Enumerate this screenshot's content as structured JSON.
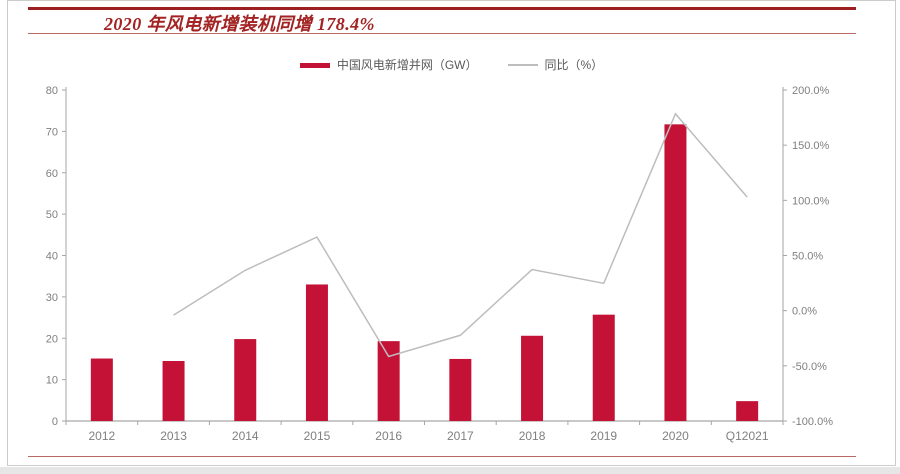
{
  "title": "2020 年风电新增装机同增 178.4%",
  "legend": {
    "bar_label": "中国风电新增并网（GW）",
    "line_label": "同比（%）"
  },
  "colors": {
    "bar": "#c41237",
    "line": "#bdbdbd",
    "axis": "#a6a6a6",
    "tick_label": "#7f7f7f",
    "title_red": "#a32323",
    "rule_thick": "#9e1f1f",
    "rule_thin": "#b96a64"
  },
  "chart_data": {
    "type": "bar",
    "subtype": "bar+line combo, dual axis",
    "title": "2020 年风电新增装机同增 178.4%",
    "categories": [
      "2012",
      "2013",
      "2014",
      "2015",
      "2016",
      "2017",
      "2018",
      "2019",
      "2020",
      "Q12021"
    ],
    "series": [
      {
        "name": "中国风电新增并网（GW）",
        "type": "bar",
        "axis": "left",
        "values": [
          15.1,
          14.5,
          19.8,
          33.0,
          19.3,
          15.0,
          20.6,
          25.7,
          71.7,
          4.8
        ]
      },
      {
        "name": "同比（%）",
        "type": "line",
        "axis": "right",
        "values": [
          null,
          -4.0,
          36.6,
          66.7,
          -41.5,
          -22.3,
          37.3,
          24.8,
          178.4,
          103.0
        ]
      }
    ],
    "left_axis": {
      "min": 0,
      "max": 80,
      "ticks": [
        "0",
        "10",
        "20",
        "30",
        "40",
        "50",
        "60",
        "70",
        "80"
      ]
    },
    "right_axis": {
      "min": -100,
      "max": 200,
      "ticks": [
        "-100.0%",
        "-50.0%",
        "0.0%",
        "50.0%",
        "100.0%",
        "150.0%",
        "200.0%"
      ]
    },
    "grid": false,
    "legend_position": "top-center"
  }
}
